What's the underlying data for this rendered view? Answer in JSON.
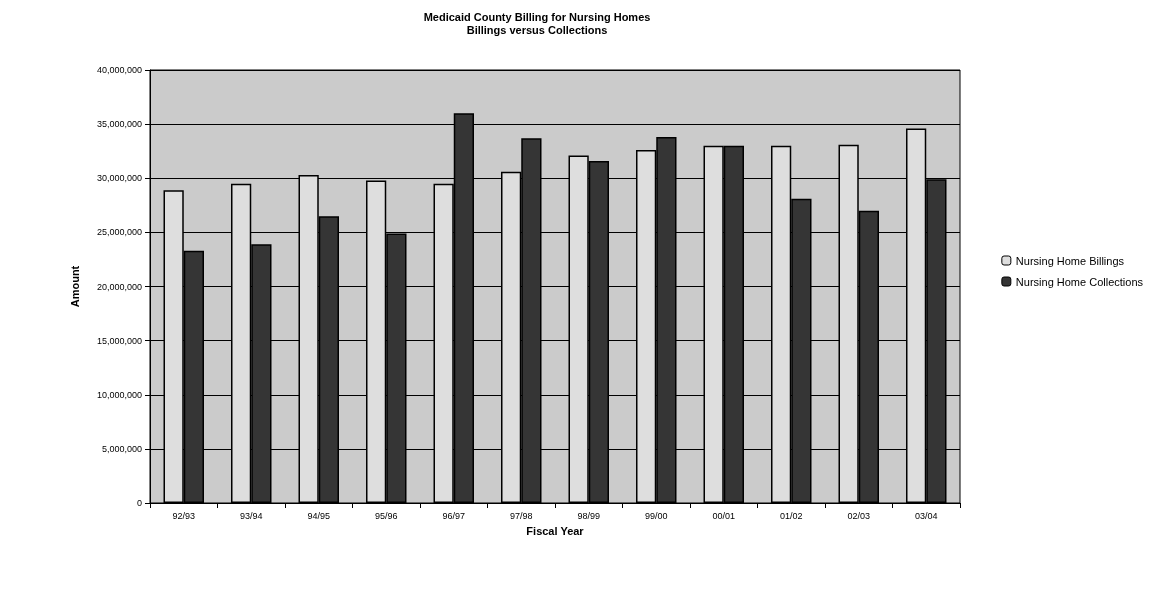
{
  "chart_data": {
    "type": "bar",
    "title": "Medicaid County Billing for Nursing Homes",
    "subtitle": "Billings versus Collections",
    "xlabel": "Fiscal Year",
    "ylabel": "Amount",
    "categories": [
      "92/93",
      "93/94",
      "94/95",
      "95/96",
      "96/97",
      "97/98",
      "98/99",
      "99/00",
      "00/01",
      "01/02",
      "02/03",
      "03/04"
    ],
    "series": [
      {
        "name": "Nursing Home Billings",
        "color": "#dedede",
        "values": [
          28900000,
          29500000,
          30300000,
          29800000,
          29500000,
          30600000,
          32100000,
          32600000,
          33000000,
          33000000,
          33100000,
          34600000
        ]
      },
      {
        "name": "Nursing Home Collections",
        "color": "#353535",
        "values": [
          23300000,
          23900000,
          26500000,
          24900000,
          36000000,
          33700000,
          31600000,
          33800000,
          33000000,
          28100000,
          27000000,
          29900000
        ]
      }
    ],
    "ylim": [
      0,
      40000000
    ],
    "yticks": [
      0,
      {
        "value": 5000000,
        "label": "5,000,000"
      },
      {
        "value": 10000000,
        "label": "10,000,000"
      },
      {
        "value": 15000000,
        "label": "15,000,000"
      },
      {
        "value": 20000000,
        "label": "20,000,000"
      },
      {
        "value": 25000000,
        "label": "25,000,000"
      },
      {
        "value": 30000000,
        "label": "30,000,000"
      },
      {
        "value": 35000000,
        "label": "35,000,000"
      },
      {
        "value": 40000000,
        "label": "40,000,000"
      }
    ],
    "grid": "y",
    "legend": "right"
  }
}
